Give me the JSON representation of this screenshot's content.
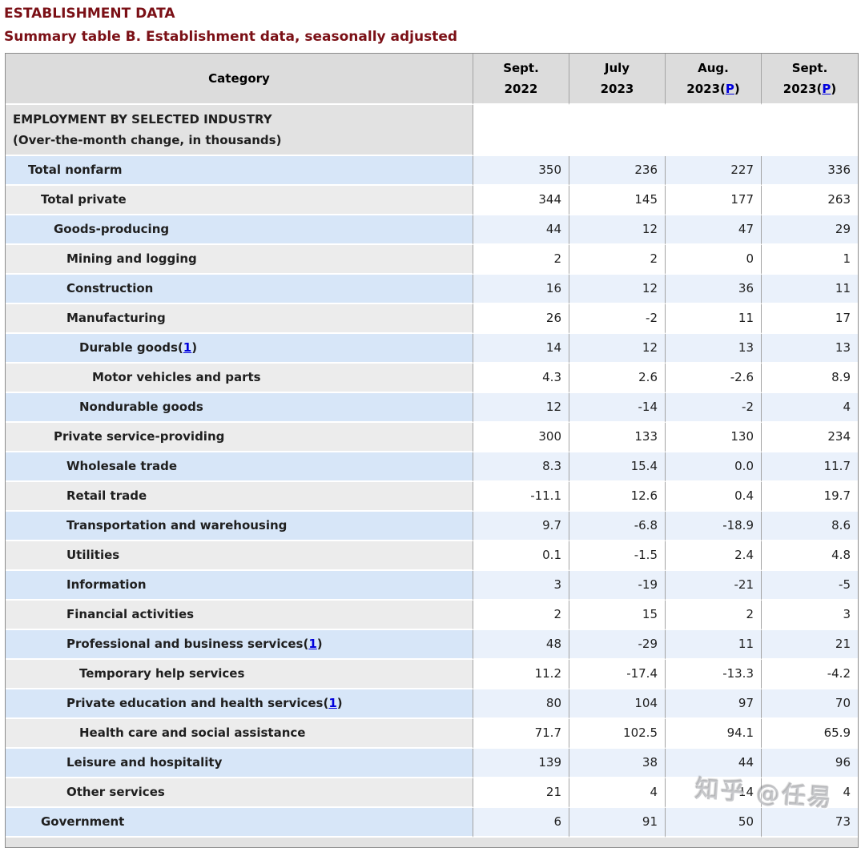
{
  "page": {
    "title": "ESTABLISHMENT DATA",
    "subtitle": "Summary table B. Establishment data, seasonally adjusted",
    "watermark": "知乎 @任易"
  },
  "colors": {
    "heading_accent": "#7b1016",
    "link_blue": "#0000dd",
    "row_blue_category": "#d7e6f8",
    "row_blue_value": "#eaf1fb",
    "row_gray_category": "#ececec",
    "header_gray": "#dcdcdc",
    "section_gray": "#e2e2e2"
  },
  "table": {
    "category_header": "Category",
    "preliminary_link": "P",
    "columns": [
      {
        "line1": "Sept.",
        "line2": "2022",
        "preliminary": false
      },
      {
        "line1": "July",
        "line2": "2023",
        "preliminary": false
      },
      {
        "line1": "Aug.",
        "line2": "2023",
        "preliminary": true
      },
      {
        "line1": "Sept.",
        "line2": "2023",
        "preliminary": true
      }
    ],
    "section": {
      "line1": "EMPLOYMENT BY SELECTED INDUSTRY",
      "line2": "(Over-the-month change, in thousands)"
    },
    "rows": [
      {
        "label": "Total nonfarm",
        "indent": 1,
        "footnote": null,
        "values": [
          "350",
          "236",
          "227",
          "336"
        ]
      },
      {
        "label": "Total private",
        "indent": 2,
        "footnote": null,
        "values": [
          "344",
          "145",
          "177",
          "263"
        ]
      },
      {
        "label": "Goods-producing",
        "indent": 3,
        "footnote": null,
        "values": [
          "44",
          "12",
          "47",
          "29"
        ]
      },
      {
        "label": "Mining and logging",
        "indent": 4,
        "footnote": null,
        "values": [
          "2",
          "2",
          "0",
          "1"
        ]
      },
      {
        "label": "Construction",
        "indent": 4,
        "footnote": null,
        "values": [
          "16",
          "12",
          "36",
          "11"
        ]
      },
      {
        "label": "Manufacturing",
        "indent": 4,
        "footnote": null,
        "values": [
          "26",
          "-2",
          "11",
          "17"
        ]
      },
      {
        "label": "Durable goods",
        "indent": 5,
        "footnote": "1",
        "values": [
          "14",
          "12",
          "13",
          "13"
        ]
      },
      {
        "label": "Motor vehicles and parts",
        "indent": 6,
        "footnote": null,
        "values": [
          "4.3",
          "2.6",
          "-2.6",
          "8.9"
        ]
      },
      {
        "label": "Nondurable goods",
        "indent": 5,
        "footnote": null,
        "values": [
          "12",
          "-14",
          "-2",
          "4"
        ]
      },
      {
        "label": "Private service-providing",
        "indent": 3,
        "footnote": null,
        "values": [
          "300",
          "133",
          "130",
          "234"
        ]
      },
      {
        "label": "Wholesale trade",
        "indent": 4,
        "footnote": null,
        "values": [
          "8.3",
          "15.4",
          "0.0",
          "11.7"
        ]
      },
      {
        "label": "Retail trade",
        "indent": 4,
        "footnote": null,
        "values": [
          "-11.1",
          "12.6",
          "0.4",
          "19.7"
        ]
      },
      {
        "label": "Transportation and warehousing",
        "indent": 4,
        "footnote": null,
        "values": [
          "9.7",
          "-6.8",
          "-18.9",
          "8.6"
        ]
      },
      {
        "label": "Utilities",
        "indent": 4,
        "footnote": null,
        "values": [
          "0.1",
          "-1.5",
          "2.4",
          "4.8"
        ]
      },
      {
        "label": "Information",
        "indent": 4,
        "footnote": null,
        "values": [
          "3",
          "-19",
          "-21",
          "-5"
        ]
      },
      {
        "label": "Financial activities",
        "indent": 4,
        "footnote": null,
        "values": [
          "2",
          "15",
          "2",
          "3"
        ]
      },
      {
        "label": "Professional and business services",
        "indent": 4,
        "footnote": "1",
        "values": [
          "48",
          "-29",
          "11",
          "21"
        ]
      },
      {
        "label": "Temporary help services",
        "indent": 5,
        "footnote": null,
        "values": [
          "11.2",
          "-17.4",
          "-13.3",
          "-4.2"
        ]
      },
      {
        "label": "Private education and health services",
        "indent": 4,
        "footnote": "1",
        "values": [
          "80",
          "104",
          "97",
          "70"
        ]
      },
      {
        "label": "Health care and social assistance",
        "indent": 5,
        "footnote": null,
        "values": [
          "71.7",
          "102.5",
          "94.1",
          "65.9"
        ]
      },
      {
        "label": "Leisure and hospitality",
        "indent": 4,
        "footnote": null,
        "values": [
          "139",
          "38",
          "44",
          "96"
        ]
      },
      {
        "label": "Other services",
        "indent": 4,
        "footnote": null,
        "values": [
          "21",
          "4",
          "14",
          "4"
        ]
      },
      {
        "label": "Government",
        "indent": 2,
        "footnote": null,
        "values": [
          "6",
          "91",
          "50",
          "73"
        ]
      }
    ]
  }
}
